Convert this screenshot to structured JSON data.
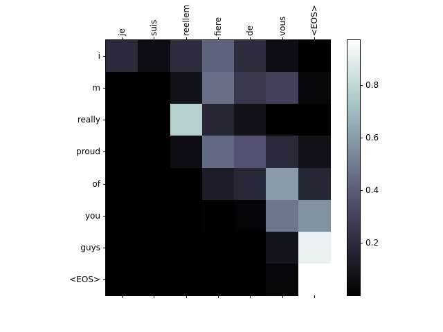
{
  "chart_data": {
    "type": "heatmap",
    "title": "",
    "xlabel": "",
    "ylabel": "",
    "x_tick_labels": [
      "je",
      "suis",
      "reellem",
      "fiere",
      "de",
      "vous",
      "<EOS>"
    ],
    "y_tick_labels": [
      "i",
      "m",
      "really",
      "proud",
      "of",
      "you",
      "guys",
      "<EOS>"
    ],
    "x_label_position": "top",
    "colormap": "bone",
    "values": [
      [
        0.19,
        0.06,
        0.2,
        0.42,
        0.2,
        0.06,
        0.0
      ],
      [
        0.0,
        0.0,
        0.08,
        0.46,
        0.25,
        0.29,
        0.03
      ],
      [
        0.0,
        0.0,
        0.77,
        0.17,
        0.08,
        0.01,
        0.01
      ],
      [
        0.0,
        0.0,
        0.06,
        0.44,
        0.37,
        0.19,
        0.08
      ],
      [
        0.0,
        0.0,
        0.0,
        0.13,
        0.18,
        0.6,
        0.17
      ],
      [
        0.0,
        0.0,
        0.0,
        0.01,
        0.02,
        0.48,
        0.57
      ],
      [
        0.0,
        0.0,
        0.0,
        0.0,
        0.0,
        0.09,
        0.91
      ],
      [
        0.0,
        0.0,
        0.0,
        0.0,
        0.0,
        0.03,
        0.97
      ]
    ],
    "colorbar": {
      "range": [
        0.0,
        0.97
      ],
      "ticks": [
        0.2,
        0.4,
        0.6,
        0.8
      ],
      "tick_labels": [
        "0.2",
        "0.4",
        "0.6",
        "0.8"
      ]
    },
    "grid": false,
    "legend": "colorbar right"
  }
}
